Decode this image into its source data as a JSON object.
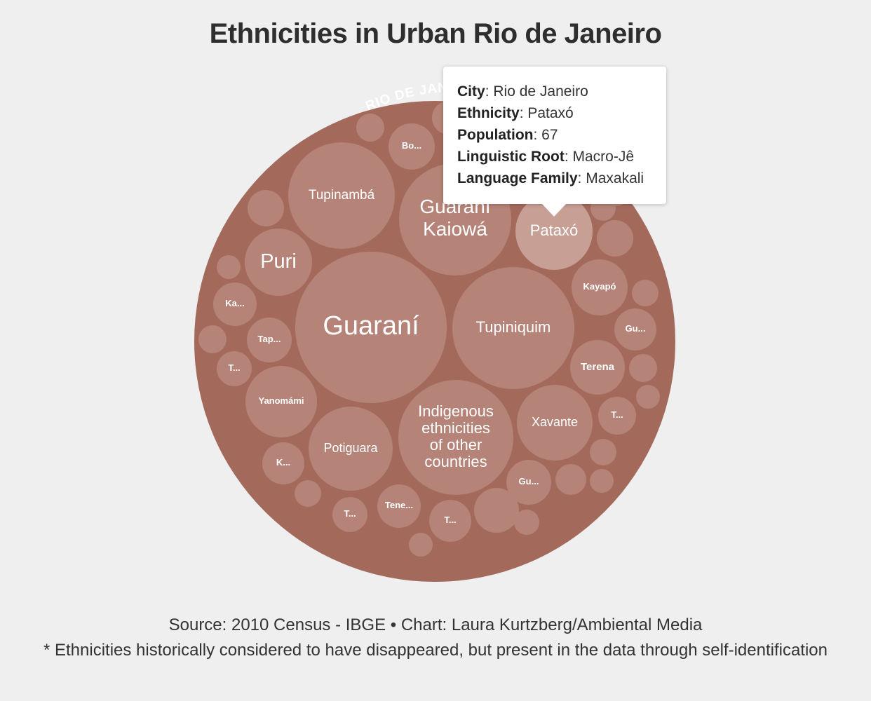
{
  "title": "Ethnicities in Urban Rio de Janeiro",
  "chart_data": {
    "type": "circle-packing",
    "group_label": "RIO DE JANEIRO",
    "colors": {
      "outer": "#a36a5c",
      "bubble": "#b58377",
      "highlight": "#c79f95",
      "background": "#efefef"
    },
    "nodes": [
      {
        "label": "Guaraní"
      },
      {
        "label": "Tupiniquim"
      },
      {
        "label": "Indigenous ethnicities of other countries"
      },
      {
        "label": "Tupinambá"
      },
      {
        "label": "Guaraní Kaiowá"
      },
      {
        "label": "Puri"
      },
      {
        "label": "Pataxó",
        "highlight": true
      },
      {
        "label": "Potiguara"
      },
      {
        "label": "Xavante"
      },
      {
        "label": "Yanomámi"
      },
      {
        "label": "Kayapó"
      },
      {
        "label": "Terena"
      },
      {
        "label": "Tap..."
      },
      {
        "label": "Ka..."
      },
      {
        "label": "Gu..."
      },
      {
        "label": "Gu..."
      },
      {
        "label": "Bo..."
      },
      {
        "label": "Tene..."
      },
      {
        "label": "T..."
      },
      {
        "label": "T..."
      },
      {
        "label": "T..."
      },
      {
        "label": "T..."
      },
      {
        "label": "K..."
      },
      {
        "label": ""
      },
      {
        "label": ""
      },
      {
        "label": ""
      },
      {
        "label": ""
      },
      {
        "label": ""
      },
      {
        "label": ""
      },
      {
        "label": ""
      },
      {
        "label": ""
      },
      {
        "label": ""
      },
      {
        "label": ""
      },
      {
        "label": ""
      },
      {
        "label": ""
      },
      {
        "label": ""
      },
      {
        "label": ""
      },
      {
        "label": ""
      },
      {
        "label": ""
      },
      {
        "label": ""
      },
      {
        "label": ""
      },
      {
        "label": ""
      },
      {
        "label": ""
      },
      {
        "label": ""
      }
    ]
  },
  "tooltip": {
    "city": {
      "label": "City",
      "value": "Rio de Janeiro"
    },
    "ethnicity": {
      "label": "Ethnicity",
      "value": "Pataxó"
    },
    "population": {
      "label": "Population",
      "value": "67"
    },
    "linguistic_root": {
      "label": "Linguistic Root",
      "value": "Macro-Jê"
    },
    "language_family": {
      "label": "Language Family",
      "value": "Maxakali"
    }
  },
  "source": "Source: 2010 Census - IBGE • Chart: Laura Kurtzberg/Ambiental Media",
  "footnote": "* Ethnicities historically considered to have disappeared, but present in the data through self-identification"
}
